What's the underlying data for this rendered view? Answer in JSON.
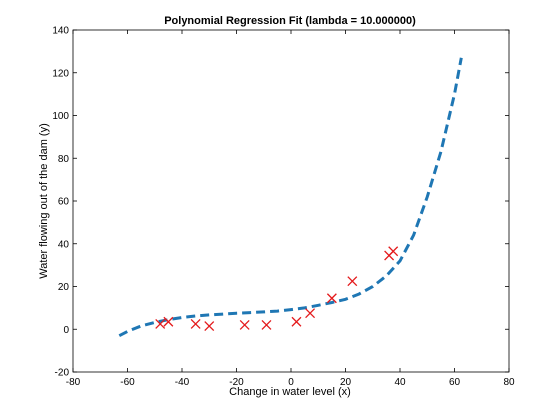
{
  "chart_data": {
    "type": "scatter",
    "title": "Polynomial Regression Fit (lambda = 10.000000)",
    "xlabel": "Change in water level (x)",
    "ylabel": "Water flowing out of the dam (y)",
    "xlim": [
      -80,
      80
    ],
    "ylim": [
      -20,
      140
    ],
    "xticks": [
      -80,
      -60,
      -40,
      -20,
      0,
      20,
      40,
      60,
      80
    ],
    "yticks": [
      -20,
      0,
      20,
      40,
      60,
      80,
      100,
      120,
      140
    ],
    "grid": false,
    "legend": "none",
    "series": [
      {
        "kind": "scatter",
        "marker": "x",
        "color": "#e41a1c",
        "points": [
          [
            -48,
            2.5
          ],
          [
            -45,
            3.5
          ],
          [
            -35,
            2.5
          ],
          [
            -30,
            1.5
          ],
          [
            -17,
            2
          ],
          [
            -9,
            2
          ],
          [
            2,
            3.5
          ],
          [
            7,
            7.5
          ],
          [
            15,
            14.5
          ],
          [
            22.5,
            22.5
          ],
          [
            36,
            34.5
          ],
          [
            37.5,
            36.5
          ]
        ]
      },
      {
        "kind": "line",
        "style": "dashed",
        "color": "#1f77b4",
        "points": [
          [
            -63,
            -3
          ],
          [
            -60,
            -1
          ],
          [
            -55,
            1.5
          ],
          [
            -50,
            3.2
          ],
          [
            -45,
            4.5
          ],
          [
            -40,
            5.5
          ],
          [
            -35,
            6.2
          ],
          [
            -30,
            6.7
          ],
          [
            -25,
            7.1
          ],
          [
            -20,
            7.5
          ],
          [
            -15,
            7.8
          ],
          [
            -10,
            8.1
          ],
          [
            -5,
            8.5
          ],
          [
            0,
            9.2
          ],
          [
            5,
            10
          ],
          [
            10,
            11.2
          ],
          [
            15,
            12.5
          ],
          [
            20,
            14
          ],
          [
            25,
            16.5
          ],
          [
            30,
            20
          ],
          [
            35,
            25
          ],
          [
            40,
            32
          ],
          [
            45,
            44
          ],
          [
            50,
            62
          ],
          [
            55,
            83
          ],
          [
            60,
            110
          ],
          [
            62.5,
            127
          ]
        ]
      }
    ]
  }
}
